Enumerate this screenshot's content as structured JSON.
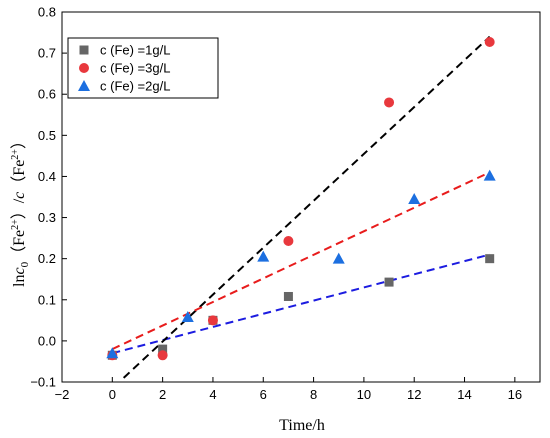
{
  "chart_data": {
    "type": "scatter",
    "xlabel": "Time/h",
    "ylabel": "lnc0（Fe2+）/c（Fe2+）",
    "ylabel_parts": {
      "ln": "ln",
      "c0": "c",
      "sub0": "0",
      "open1": "（Fe",
      "sup1": "2+",
      "close1": "）/",
      "c": "c",
      "open2": "（Fe",
      "sup2": "2+",
      "close2": "）"
    },
    "xlim": [
      -2,
      17
    ],
    "ylim": [
      -0.1,
      0.8
    ],
    "xticks": [
      -2,
      0,
      2,
      4,
      6,
      8,
      10,
      12,
      14,
      16
    ],
    "yticks": [
      -0.1,
      0.0,
      0.1,
      0.2,
      0.3,
      0.4,
      0.5,
      0.6,
      0.7,
      0.8
    ],
    "xtick_labels": [
      "−2",
      "0",
      "2",
      "4",
      "6",
      "8",
      "10",
      "12",
      "14",
      "16"
    ],
    "ytick_labels": [
      "−0.1",
      "0.0",
      "0.1",
      "0.2",
      "0.3",
      "0.4",
      "0.5",
      "0.6",
      "0.7",
      "0.8"
    ],
    "legend_position": "top-left",
    "series": [
      {
        "name": "c (Fe) =1g/L",
        "marker": "square",
        "color": "#666666",
        "points": [
          [
            0,
            -0.035
          ],
          [
            2,
            -0.02
          ],
          [
            4,
            0.05
          ],
          [
            7,
            0.108
          ],
          [
            11,
            0.143
          ],
          [
            15,
            0.2
          ]
        ]
      },
      {
        "name": "c (Fe) =3g/L",
        "marker": "circle",
        "color": "#e8383d",
        "points": [
          [
            0,
            -0.035
          ],
          [
            2,
            -0.035
          ],
          [
            4,
            0.05
          ],
          [
            7,
            0.243
          ],
          [
            11,
            0.58
          ],
          [
            15,
            0.727
          ]
        ]
      },
      {
        "name": "c (Fe) =2g/L",
        "marker": "triangle",
        "color": "#1c6fe0",
        "points": [
          [
            0,
            -0.03
          ],
          [
            3,
            0.058
          ],
          [
            6,
            0.205
          ],
          [
            9,
            0.2
          ],
          [
            12,
            0.345
          ],
          [
            15,
            0.402
          ]
        ]
      }
    ],
    "fit_lines": [
      {
        "series": "c (Fe) =1g/L",
        "color": "#1c1ce0",
        "from": [
          0,
          -0.03
        ],
        "to": [
          15,
          0.21
        ]
      },
      {
        "series": "c (Fe) =3g/L",
        "color": "#000000",
        "from": [
          0.45,
          -0.09
        ],
        "to": [
          15,
          0.74
        ]
      },
      {
        "series": "c (Fe) =2g/L",
        "color": "#e81c1c",
        "from": [
          0,
          -0.02
        ],
        "to": [
          15,
          0.41
        ]
      }
    ]
  }
}
